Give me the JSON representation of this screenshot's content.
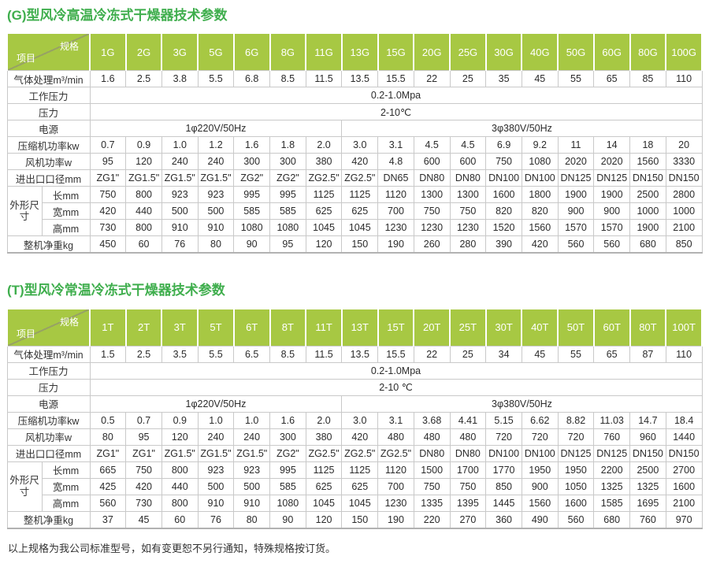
{
  "page": {
    "footer": "以上规格为我公司标准型号，如有变更恕不另行通知，特殊规格按订货。"
  },
  "colors": {
    "title_green": "#3fae4d",
    "header_green": "#a7c843",
    "border_gray": "#c9c9c9"
  },
  "tables": [
    {
      "series": "G",
      "title": "(G)型风冷高温冷冻式干燥器技术参数",
      "corner_top": "规格",
      "corner_bottom": "项目",
      "models": [
        "1G",
        "2G",
        "3G",
        "5G",
        "6G",
        "8G",
        "11G",
        "13G",
        "15G",
        "20G",
        "25G",
        "30G",
        "40G",
        "50G",
        "60G",
        "80G",
        "100G"
      ],
      "rows": [
        {
          "type": "cells",
          "label": "气体处理m³/min",
          "values": [
            "1.6",
            "2.5",
            "3.8",
            "5.5",
            "6.8",
            "8.5",
            "11.5",
            "13.5",
            "15.5",
            "22",
            "25",
            "35",
            "45",
            "55",
            "65",
            "85",
            "110"
          ]
        },
        {
          "type": "span",
          "label": "工作压力",
          "value": "0.2-1.0Mpa"
        },
        {
          "type": "span",
          "label": "压力",
          "value": "2-10℃"
        },
        {
          "type": "split",
          "label": "电源",
          "left": {
            "value": "1φ220V/50Hz",
            "span": 7
          },
          "right": {
            "value": "3φ380V/50Hz",
            "span": 10
          }
        },
        {
          "type": "cells",
          "label": "压缩机功率kw",
          "values": [
            "0.7",
            "0.9",
            "1.0",
            "1.2",
            "1.6",
            "1.8",
            "2.0",
            "3.0",
            "3.1",
            "4.5",
            "4.5",
            "6.9",
            "9.2",
            "11",
            "14",
            "18",
            "20"
          ]
        },
        {
          "type": "cells",
          "label": "风机功率w",
          "values": [
            "95",
            "120",
            "240",
            "240",
            "300",
            "300",
            "380",
            "420",
            "4.8",
            "600",
            "600",
            "750",
            "1080",
            "2020",
            "2020",
            "1560",
            "3330"
          ]
        },
        {
          "type": "cells",
          "label": "进出口口径mm",
          "values": [
            "ZG1\"",
            "ZG1.5\"",
            "ZG1.5\"",
            "ZG1.5\"",
            "ZG2\"",
            "ZG2\"",
            "ZG2.5\"",
            "ZG2.5\"",
            "DN65",
            "DN80",
            "DN80",
            "DN100",
            "DN100",
            "DN125",
            "DN125",
            "DN150",
            "DN150"
          ]
        },
        {
          "type": "group",
          "label": "外形尺寸",
          "rows": [
            {
              "label": "长mm",
              "values": [
                "750",
                "800",
                "923",
                "923",
                "995",
                "995",
                "1125",
                "1125",
                "1120",
                "1300",
                "1300",
                "1600",
                "1800",
                "1900",
                "1900",
                "2500",
                "2800"
              ]
            },
            {
              "label": "宽mm",
              "values": [
                "420",
                "440",
                "500",
                "500",
                "585",
                "585",
                "625",
                "625",
                "700",
                "750",
                "750",
                "820",
                "820",
                "900",
                "900",
                "1000",
                "1000"
              ]
            },
            {
              "label": "高mm",
              "values": [
                "730",
                "800",
                "910",
                "910",
                "1080",
                "1080",
                "1045",
                "1045",
                "1230",
                "1230",
                "1230",
                "1520",
                "1560",
                "1570",
                "1570",
                "1900",
                "2100"
              ]
            }
          ]
        },
        {
          "type": "cells",
          "label": "整机净重kg",
          "values": [
            "450",
            "60",
            "76",
            "80",
            "90",
            "95",
            "120",
            "150",
            "190",
            "260",
            "280",
            "390",
            "420",
            "560",
            "560",
            "680",
            "850"
          ]
        }
      ]
    },
    {
      "series": "T",
      "title": "(T)型风冷常温冷冻式干燥器技术参数",
      "corner_top": "规格",
      "corner_bottom": "项目",
      "models": [
        "1T",
        "2T",
        "3T",
        "5T",
        "6T",
        "8T",
        "11T",
        "13T",
        "15T",
        "20T",
        "25T",
        "30T",
        "40T",
        "50T",
        "60T",
        "80T",
        "100T"
      ],
      "rows": [
        {
          "type": "cells",
          "label": "气体处理m³/min",
          "values": [
            "1.5",
            "2.5",
            "3.5",
            "5.5",
            "6.5",
            "8.5",
            "11.5",
            "13.5",
            "15.5",
            "22",
            "25",
            "34",
            "45",
            "55",
            "65",
            "87",
            "110"
          ]
        },
        {
          "type": "span",
          "label": "工作压力",
          "value": "0.2-1.0Mpa"
        },
        {
          "type": "span",
          "label": "压力",
          "value": "2-10 ℃"
        },
        {
          "type": "split",
          "label": "电源",
          "left": {
            "value": "1φ220V/50Hz",
            "span": 7
          },
          "right": {
            "value": "3φ380V/50Hz",
            "span": 10
          }
        },
        {
          "type": "cells",
          "label": "压缩机功率kw",
          "values": [
            "0.5",
            "0.7",
            "0.9",
            "1.0",
            "1.0",
            "1.6",
            "2.0",
            "3.0",
            "3.1",
            "3.68",
            "4.41",
            "5.15",
            "6.62",
            "8.82",
            "11.03",
            "14.7",
            "18.4"
          ]
        },
        {
          "type": "cells",
          "label": "风机功率w",
          "values": [
            "80",
            "95",
            "120",
            "240",
            "240",
            "300",
            "380",
            "420",
            "480",
            "480",
            "480",
            "720",
            "720",
            "720",
            "760",
            "960",
            "1440"
          ]
        },
        {
          "type": "cells",
          "label": "进出口口径mm",
          "values": [
            "ZG1\"",
            "ZG1\"",
            "ZG1.5\"",
            "ZG1.5\"",
            "ZG1.5\"",
            "ZG2\"",
            "ZG2.5\"",
            "ZG2.5\"",
            "ZG2.5\"",
            "DN80",
            "DN80",
            "DN100",
            "DN100",
            "DN125",
            "DN125",
            "DN150",
            "DN150"
          ]
        },
        {
          "type": "group",
          "label": "外形尺寸",
          "rows": [
            {
              "label": "长mm",
              "values": [
                "665",
                "750",
                "800",
                "923",
                "923",
                "995",
                "1125",
                "1125",
                "1120",
                "1500",
                "1700",
                "1770",
                "1950",
                "1950",
                "2200",
                "2500",
                "2700"
              ]
            },
            {
              "label": "宽mm",
              "values": [
                "425",
                "420",
                "440",
                "500",
                "500",
                "585",
                "625",
                "625",
                "700",
                "750",
                "750",
                "850",
                "900",
                "1050",
                "1325",
                "1325",
                "1600"
              ]
            },
            {
              "label": "高mm",
              "values": [
                "560",
                "730",
                "800",
                "910",
                "910",
                "1080",
                "1045",
                "1045",
                "1230",
                "1335",
                "1395",
                "1445",
                "1560",
                "1600",
                "1585",
                "1695",
                "2100"
              ]
            }
          ]
        },
        {
          "type": "cells",
          "label": "整机净重kg",
          "values": [
            "37",
            "45",
            "60",
            "76",
            "80",
            "90",
            "120",
            "150",
            "190",
            "220",
            "270",
            "360",
            "490",
            "560",
            "680",
            "760",
            "970"
          ]
        }
      ]
    }
  ]
}
